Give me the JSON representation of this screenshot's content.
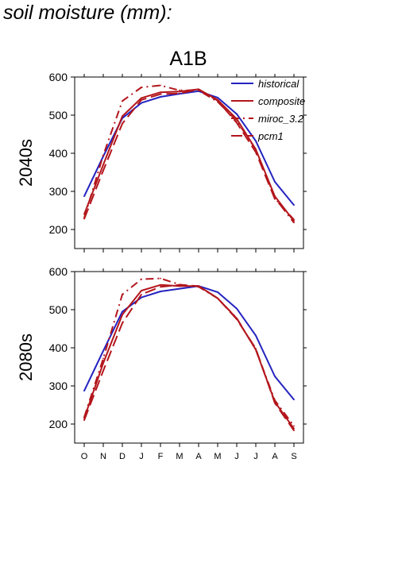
{
  "figure": {
    "title": "soil moisture (mm):",
    "column_title": "A1B"
  },
  "colors": {
    "historical": "#2323c0",
    "scenario": "#b3161c",
    "axis": "#000000"
  },
  "chart_data": [
    {
      "type": "line",
      "panel": "2040s",
      "ylabel": "2040s",
      "xlabel": "",
      "categories": [
        "O",
        "N",
        "D",
        "J",
        "F",
        "M",
        "A",
        "M",
        "J",
        "J",
        "A",
        "S"
      ],
      "ylim": [
        150,
        600
      ],
      "yticks": [
        200,
        300,
        400,
        500,
        600
      ],
      "grid": false,
      "legend": "top-right",
      "series": [
        {
          "name": "historical",
          "style": "solid",
          "color": "#2323c0",
          "values": [
            287,
            392,
            492,
            532,
            548,
            556,
            563,
            546,
            503,
            432,
            325,
            264
          ]
        },
        {
          "name": "composite",
          "style": "solid",
          "color": "#b3161c",
          "values": [
            240,
            370,
            497,
            545,
            560,
            562,
            568,
            540,
            490,
            410,
            287,
            222
          ]
        },
        {
          "name": "miroc_3.2",
          "style": "dashdot",
          "color": "#b3161c",
          "values": [
            230,
            395,
            537,
            573,
            578,
            565,
            565,
            535,
            485,
            410,
            283,
            218
          ]
        },
        {
          "name": "pcm1",
          "style": "dashed",
          "color": "#b3161c",
          "values": [
            228,
            355,
            478,
            540,
            555,
            557,
            567,
            538,
            480,
            403,
            280,
            226
          ]
        }
      ]
    },
    {
      "type": "line",
      "panel": "2080s",
      "ylabel": "2080s",
      "xlabel": "",
      "categories": [
        "O",
        "N",
        "D",
        "J",
        "F",
        "M",
        "A",
        "M",
        "J",
        "J",
        "A",
        "S"
      ],
      "ylim": [
        150,
        600
      ],
      "yticks": [
        200,
        300,
        400,
        500,
        600
      ],
      "grid": false,
      "legend": "none",
      "series": [
        {
          "name": "historical",
          "style": "solid",
          "color": "#2323c0",
          "values": [
            287,
            392,
            495,
            532,
            548,
            555,
            562,
            546,
            503,
            432,
            325,
            264
          ]
        },
        {
          "name": "composite",
          "style": "solid",
          "color": "#b3161c",
          "values": [
            215,
            360,
            487,
            550,
            565,
            562,
            562,
            530,
            477,
            395,
            258,
            188
          ]
        },
        {
          "name": "miroc_3.2",
          "style": "dashdot",
          "color": "#b3161c",
          "values": [
            218,
            372,
            540,
            580,
            582,
            566,
            560,
            530,
            478,
            395,
            262,
            195
          ]
        },
        {
          "name": "pcm1",
          "style": "dashed",
          "color": "#b3161c",
          "values": [
            210,
            340,
            465,
            540,
            560,
            565,
            562,
            530,
            475,
            398,
            255,
            183
          ]
        }
      ]
    }
  ]
}
